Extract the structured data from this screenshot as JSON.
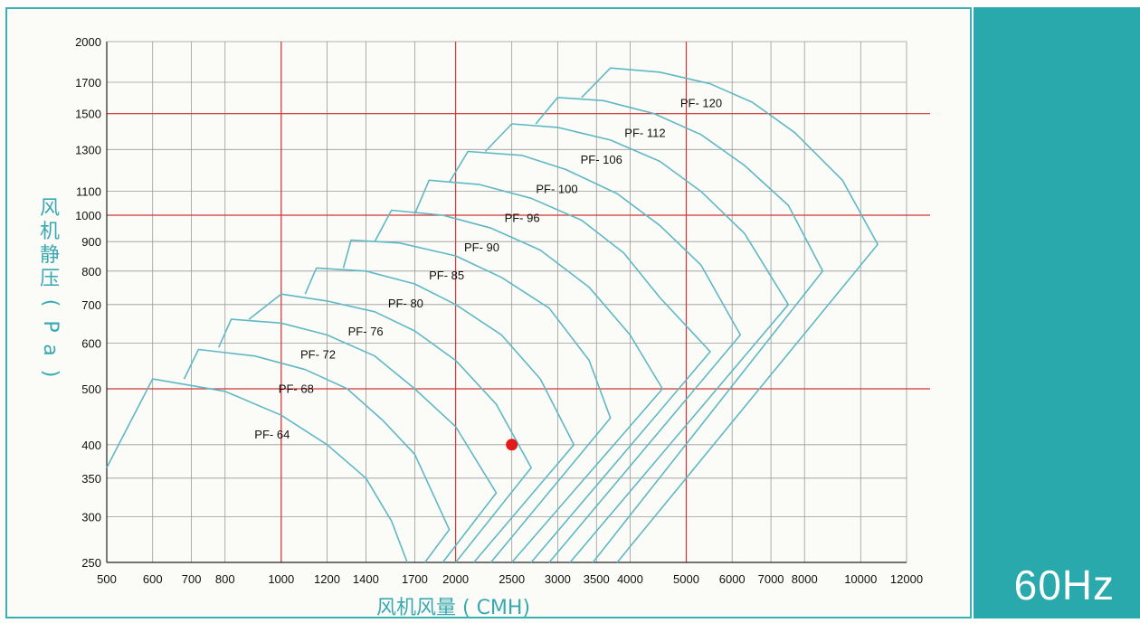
{
  "chart_data": {
    "type": "line",
    "title": "",
    "xlabel": "风机风量 ( CMH)",
    "ylabel": "风机静压 ( Pa)",
    "x_scale": "log",
    "y_scale": "log",
    "xlim": [
      500,
      12000
    ],
    "ylim": [
      250,
      2000
    ],
    "grid": true,
    "x_ticks": [
      500,
      600,
      700,
      800,
      1000,
      1200,
      1400,
      1700,
      2000,
      2500,
      3000,
      3500,
      4000,
      5000,
      6000,
      7000,
      8000,
      10000,
      12000
    ],
    "y_ticks": [
      250,
      300,
      350,
      400,
      500,
      600,
      700,
      800,
      900,
      1000,
      1100,
      1300,
      1500,
      1700,
      2000
    ],
    "reference_lines": {
      "x": [
        1000,
        2000,
        5000
      ],
      "y": [
        500,
        1000,
        1500
      ]
    },
    "series": [
      {
        "name": "PF- 64",
        "x": [
          500,
          600,
          800,
          1000,
          1200,
          1400,
          1550,
          1650
        ],
        "y": [
          365,
          520,
          495,
          450,
          400,
          350,
          295,
          250
        ]
      },
      {
        "name": "PF- 68",
        "x": [
          680,
          720,
          900,
          1100,
          1300,
          1500,
          1700,
          1950,
          1770
        ],
        "y": [
          520,
          585,
          570,
          540,
          500,
          440,
          385,
          285,
          250
        ]
      },
      {
        "name": "PF- 72",
        "x": [
          780,
          820,
          1000,
          1200,
          1450,
          1700,
          2000,
          2350,
          1900
        ],
        "y": [
          590,
          660,
          650,
          620,
          570,
          500,
          430,
          330,
          250
        ]
      },
      {
        "name": "PF- 76",
        "x": [
          880,
          1000,
          1200,
          1450,
          1700,
          2000,
          2350,
          2700,
          2000
        ],
        "y": [
          660,
          730,
          710,
          680,
          630,
          560,
          470,
          365,
          250
        ]
      },
      {
        "name": "PF- 80",
        "x": [
          1100,
          1150,
          1400,
          1700,
          2000,
          2400,
          2800,
          3200,
          2150
        ],
        "y": [
          730,
          810,
          800,
          760,
          700,
          620,
          520,
          400,
          250
        ]
      },
      {
        "name": "PF- 85",
        "x": [
          1280,
          1320,
          1600,
          2000,
          2400,
          2900,
          3400,
          3700,
          2300
        ],
        "y": [
          810,
          905,
          895,
          850,
          780,
          690,
          560,
          445,
          250
        ]
      },
      {
        "name": "PF- 90",
        "x": [
          1450,
          1550,
          1900,
          2300,
          2800,
          3400,
          4000,
          4550,
          2500
        ],
        "y": [
          900,
          1020,
          1000,
          950,
          870,
          750,
          620,
          500,
          250
        ]
      },
      {
        "name": "PF- 96",
        "x": [
          1700,
          1800,
          2200,
          2700,
          3300,
          3900,
          4500,
          5500,
          2700
        ],
        "y": [
          1005,
          1150,
          1130,
          1070,
          980,
          860,
          720,
          580,
          250
        ]
      },
      {
        "name": "PF- 100",
        "x": [
          1950,
          2100,
          2600,
          3100,
          3800,
          4500,
          5300,
          6200,
          2900
        ],
        "y": [
          1140,
          1290,
          1270,
          1200,
          1090,
          960,
          820,
          620,
          250
        ]
      },
      {
        "name": "PF- 106",
        "x": [
          2250,
          2500,
          3000,
          3700,
          4500,
          5300,
          6300,
          7500,
          3150
        ],
        "y": [
          1290,
          1440,
          1420,
          1350,
          1240,
          1100,
          930,
          700,
          250
        ]
      },
      {
        "name": "PF- 112",
        "x": [
          2750,
          3000,
          3600,
          4400,
          5300,
          6300,
          7500,
          8600,
          3450
        ],
        "y": [
          1440,
          1600,
          1580,
          1500,
          1380,
          1220,
          1040,
          800,
          250
        ]
      },
      {
        "name": "PF- 120",
        "x": [
          3300,
          3700,
          4500,
          5500,
          6500,
          7700,
          9300,
          10700,
          3800
        ],
        "y": [
          1600,
          1800,
          1770,
          1690,
          1570,
          1390,
          1150,
          890,
          250
        ]
      }
    ],
    "marker": {
      "x": 2500,
      "y": 400,
      "color": "#e01b1b"
    },
    "colors": {
      "curve": "#5fb8c4",
      "grid": "#9a9a9a",
      "reference": "#d43434",
      "accent": "#2aa9ad"
    }
  },
  "panel": {
    "frequency": "60Hz"
  }
}
